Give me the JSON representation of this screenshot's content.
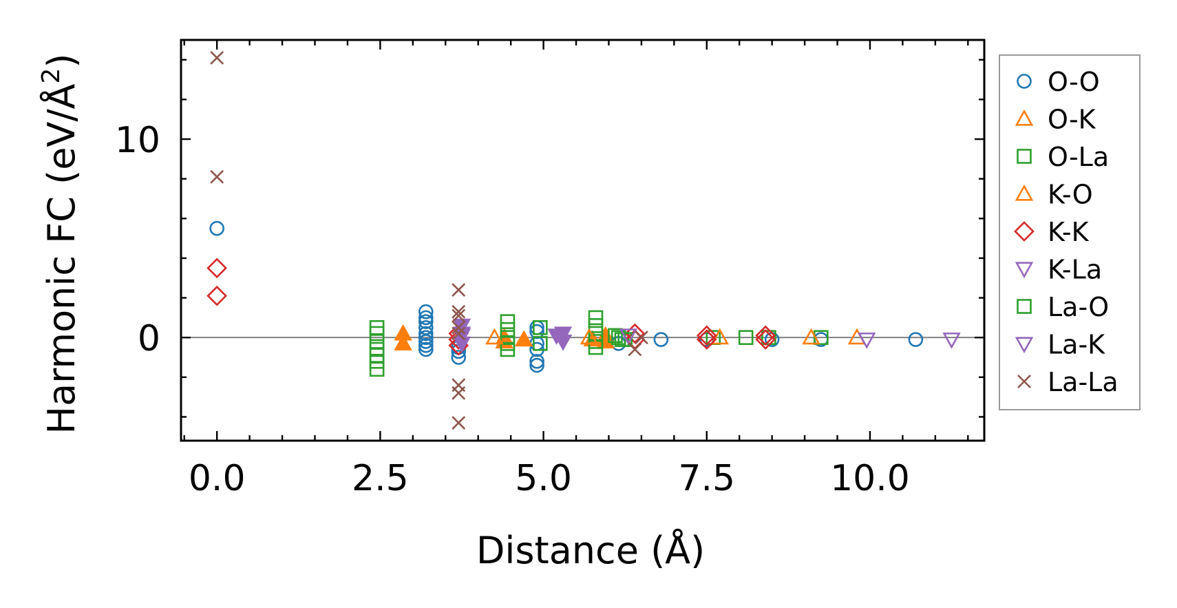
{
  "chart_data": {
    "type": "scatter",
    "title": "",
    "xlabel": "Distance (Å)",
    "ylabel_main": "Harmonic FC (eV/Å",
    "ylabel_sup": "2",
    "ylabel_close": ")",
    "xlim": [
      -0.55,
      11.75
    ],
    "ylim": [
      -5.2,
      15.0
    ],
    "xticks": [
      0.0,
      2.5,
      5.0,
      7.5,
      10.0
    ],
    "xtick_labels": [
      "0.0",
      "2.5",
      "5.0",
      "7.5",
      "10.0"
    ],
    "yticks": [
      0,
      10
    ],
    "ytick_labels": [
      "0",
      "10"
    ],
    "x_minor_step": 0.5,
    "y_minor_step": 2,
    "zero_line": true,
    "legend_position": "right-outside",
    "series": [
      {
        "name": "O-O",
        "marker": "circle",
        "color": "#1f77b4",
        "filled": false,
        "x": [
          0,
          3.2,
          3.2,
          3.2,
          3.2,
          3.2,
          3.2,
          3.2,
          3.2,
          3.2,
          3.7,
          3.7,
          3.7,
          4.9,
          4.9,
          4.9,
          4.9,
          4.9,
          4.9,
          6.15,
          6.8,
          7.5,
          8.5,
          9.25,
          10.7
        ],
        "y": [
          5.5,
          1.3,
          0.8,
          0.5,
          0.2,
          0.0,
          -0.2,
          -0.4,
          -0.6,
          1.0,
          -0.5,
          -0.7,
          -1.0,
          0.5,
          0.3,
          -0.3,
          -0.6,
          -1.2,
          -1.4,
          -0.3,
          -0.1,
          -0.1,
          -0.1,
          -0.1,
          -0.1
        ]
      },
      {
        "name": "O-K",
        "marker": "triangle-up",
        "color": "#ff7f0e",
        "filled": true,
        "x": [
          2.85,
          2.85,
          4.4,
          4.4,
          4.7,
          5.75,
          5.95,
          5.95
        ],
        "y": [
          0.2,
          -0.3,
          0.0,
          -0.2,
          -0.1,
          -0.1,
          0.1,
          -0.2
        ]
      },
      {
        "name": "O-La",
        "marker": "square",
        "color": "#2ca02c",
        "filled": false,
        "x": [
          2.45,
          2.45,
          2.45,
          2.45,
          2.45,
          2.45,
          2.45,
          4.45,
          4.45,
          4.45,
          4.45,
          4.45,
          4.95,
          4.95,
          5.8,
          5.8,
          5.8,
          5.8,
          5.8,
          6.1,
          6.2,
          7.6,
          8.1,
          8.45,
          9.25
        ],
        "y": [
          0.5,
          0.2,
          -0.2,
          -0.6,
          -0.9,
          -1.2,
          -1.6,
          0.8,
          0.4,
          0.0,
          -0.3,
          -0.6,
          0.5,
          -0.3,
          1.0,
          0.6,
          0.2,
          -0.2,
          -0.5,
          0.1,
          -0.1,
          0.0,
          0.0,
          0.0,
          0.0
        ]
      },
      {
        "name": "K-O",
        "marker": "triangle-up",
        "color": "#ff7f0e",
        "filled": false,
        "x": [
          4.25,
          5.7,
          7.7,
          9.1,
          9.8
        ],
        "y": [
          0.0,
          0.0,
          0.0,
          0.0,
          0.0
        ]
      },
      {
        "name": "K-K",
        "marker": "diamond",
        "color": "#d62728",
        "filled": false,
        "x": [
          0,
          0,
          3.7,
          3.7,
          3.7,
          6.4,
          6.4,
          7.5,
          7.5,
          8.4,
          8.4
        ],
        "y": [
          3.5,
          2.1,
          0.2,
          -0.1,
          -0.4,
          0.2,
          -0.1,
          0.1,
          -0.1,
          0.1,
          -0.1
        ]
      },
      {
        "name": "K-La",
        "marker": "triangle-down",
        "color": "#9467bd",
        "filled": true,
        "x": [
          3.75,
          3.75,
          3.75,
          5.2,
          5.3,
          5.3
        ],
        "y": [
          0.6,
          0.2,
          -0.3,
          0.1,
          0.2,
          -0.2
        ]
      },
      {
        "name": "La-O",
        "marker": "square",
        "color": "#2ca02c",
        "filled": false,
        "x": [
          6.15,
          6.25
        ],
        "y": [
          0.0,
          -0.1
        ]
      },
      {
        "name": "La-K",
        "marker": "triangle-down",
        "color": "#9467bd",
        "filled": false,
        "x": [
          3.75,
          6.3,
          9.95,
          11.25
        ],
        "y": [
          0.1,
          0.1,
          -0.1,
          -0.1
        ]
      },
      {
        "name": "La-La",
        "marker": "x",
        "color": "#8c564b",
        "filled": false,
        "x": [
          0,
          0,
          3.7,
          3.7,
          3.7,
          3.7,
          3.7,
          3.7,
          3.7,
          3.7,
          6.4,
          6.5
        ],
        "y": [
          14.1,
          8.1,
          2.4,
          1.3,
          1.1,
          0.5,
          0.2,
          -2.4,
          -2.8,
          -4.3,
          -0.6,
          0.0
        ]
      }
    ]
  }
}
